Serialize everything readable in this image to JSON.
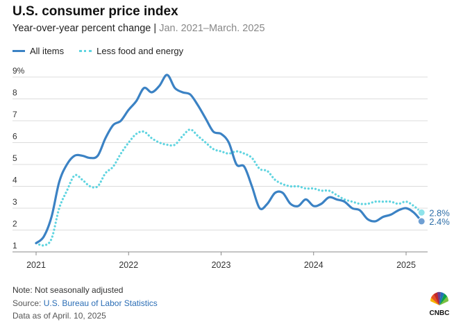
{
  "header": {
    "title": "U.S. consumer price index",
    "subtitle_main": "Year-over-year percent change | ",
    "subtitle_range": "Jan. 2021–March. 2025"
  },
  "legend": {
    "all_items": "All items",
    "core": "Less food and energy"
  },
  "footer": {
    "note": "Note: Not seasonally adjusted",
    "source_prefix": "Source: ",
    "source_link": "U.S. Bureau of Labor Statistics",
    "as_of": "Data as of April. 10, 2025"
  },
  "logo": {
    "text": "CNBC"
  },
  "colors": {
    "all_items": "#3b82c4",
    "core": "#5fd4e0",
    "grid": "#dcdcdc",
    "axis": "#888888"
  },
  "chart_data": {
    "type": "line",
    "ylim": [
      1,
      9
    ],
    "yticks": [
      "1",
      "2",
      "3",
      "4",
      "5",
      "6",
      "7",
      "8",
      "9%"
    ],
    "xticks": [
      "2021",
      "2022",
      "2023",
      "2024",
      "2025"
    ],
    "grid": true,
    "series": [
      {
        "name": "All items",
        "end_label": "2.4%",
        "x": [
          "2021-01",
          "2021-02",
          "2021-03",
          "2021-04",
          "2021-05",
          "2021-06",
          "2021-07",
          "2021-08",
          "2021-09",
          "2021-10",
          "2021-11",
          "2021-12",
          "2022-01",
          "2022-02",
          "2022-03",
          "2022-04",
          "2022-05",
          "2022-06",
          "2022-07",
          "2022-08",
          "2022-09",
          "2022-10",
          "2022-11",
          "2022-12",
          "2023-01",
          "2023-02",
          "2023-03",
          "2023-04",
          "2023-05",
          "2023-06",
          "2023-07",
          "2023-08",
          "2023-09",
          "2023-10",
          "2023-11",
          "2023-12",
          "2024-01",
          "2024-02",
          "2024-03",
          "2024-04",
          "2024-05",
          "2024-06",
          "2024-07",
          "2024-08",
          "2024-09",
          "2024-10",
          "2024-11",
          "2024-12",
          "2025-01",
          "2025-02",
          "2025-03"
        ],
        "values": [
          1.4,
          1.7,
          2.6,
          4.2,
          5.0,
          5.4,
          5.4,
          5.3,
          5.4,
          6.2,
          6.8,
          7.0,
          7.5,
          7.9,
          8.5,
          8.3,
          8.6,
          9.1,
          8.5,
          8.3,
          8.2,
          7.7,
          7.1,
          6.5,
          6.4,
          6.0,
          5.0,
          4.9,
          4.0,
          3.0,
          3.2,
          3.7,
          3.7,
          3.2,
          3.1,
          3.4,
          3.1,
          3.2,
          3.5,
          3.4,
          3.3,
          3.0,
          2.9,
          2.5,
          2.4,
          2.6,
          2.7,
          2.9,
          3.0,
          2.8,
          2.4
        ]
      },
      {
        "name": "Less food and energy",
        "end_label": "2.8%",
        "x": [
          "2021-01",
          "2021-02",
          "2021-03",
          "2021-04",
          "2021-05",
          "2021-06",
          "2021-07",
          "2021-08",
          "2021-09",
          "2021-10",
          "2021-11",
          "2021-12",
          "2022-01",
          "2022-02",
          "2022-03",
          "2022-04",
          "2022-05",
          "2022-06",
          "2022-07",
          "2022-08",
          "2022-09",
          "2022-10",
          "2022-11",
          "2022-12",
          "2023-01",
          "2023-02",
          "2023-03",
          "2023-04",
          "2023-05",
          "2023-06",
          "2023-07",
          "2023-08",
          "2023-09",
          "2023-10",
          "2023-11",
          "2023-12",
          "2024-01",
          "2024-02",
          "2024-03",
          "2024-04",
          "2024-05",
          "2024-06",
          "2024-07",
          "2024-08",
          "2024-09",
          "2024-10",
          "2024-11",
          "2024-12",
          "2025-01",
          "2025-02",
          "2025-03"
        ],
        "values": [
          1.4,
          1.3,
          1.6,
          3.0,
          3.8,
          4.5,
          4.3,
          4.0,
          4.0,
          4.6,
          4.9,
          5.5,
          6.0,
          6.4,
          6.5,
          6.2,
          6.0,
          5.9,
          5.9,
          6.3,
          6.6,
          6.3,
          6.0,
          5.7,
          5.6,
          5.5,
          5.6,
          5.5,
          5.3,
          4.8,
          4.7,
          4.3,
          4.1,
          4.0,
          4.0,
          3.9,
          3.9,
          3.8,
          3.8,
          3.6,
          3.4,
          3.3,
          3.2,
          3.2,
          3.3,
          3.3,
          3.3,
          3.2,
          3.3,
          3.1,
          2.8
        ]
      }
    ]
  }
}
